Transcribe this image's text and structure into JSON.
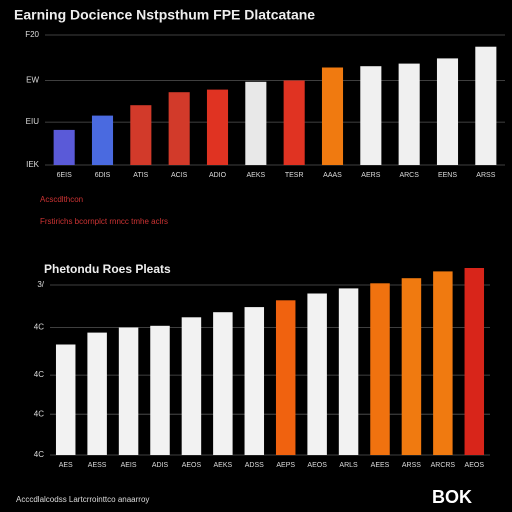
{
  "chart_data": [
    {
      "type": "bar",
      "title": "Earning Docience Nstpsthum FPE Dlatcatane",
      "categories": [
        "6EIS",
        "6DIS",
        "ATIS",
        "ACIS",
        "ADIO",
        "AEKS",
        "TESR",
        "AAAS",
        "AERS",
        "ARCS",
        "EENS",
        "ARSS"
      ],
      "values": [
        27,
        38,
        46,
        56,
        58,
        64,
        65,
        75,
        76,
        78,
        82,
        91
      ],
      "colors": [
        "#5a5ad8",
        "#4a6ae0",
        "#d23a2a",
        "#d23a2a",
        "#e03322",
        "#e8e8e8",
        "#e03322",
        "#f07a10",
        "#f0f0f0",
        "#f0f0f0",
        "#f0f0f0",
        "#f0f0f0"
      ],
      "ylim": [
        0,
        100
      ],
      "yticks": [
        {
          "value": 0,
          "label": "IEK"
        },
        {
          "value": 33,
          "label": "EIU"
        },
        {
          "value": 65,
          "label": "EW"
        },
        {
          "value": 100,
          "label": "F20"
        }
      ],
      "grid": true,
      "annotations": [
        "Acscdlthcon",
        "Frstirichs bcornplct rnncc tmhe aclrs"
      ]
    },
    {
      "type": "bar",
      "title": "Phetondu Roes Pleats",
      "categories": [
        "AES",
        "AESS",
        "AEIS",
        "ADIS",
        "AEOS",
        "AEKS",
        "ADSS",
        "AEPS",
        "AEOS",
        "ARLS",
        "AEES",
        "ARSS",
        "ARCRS",
        "AEOS"
      ],
      "values": [
        65,
        72,
        75,
        76,
        81,
        84,
        87,
        91,
        95,
        98,
        101,
        104,
        108,
        110
      ],
      "colors": [
        "#f2f2f2",
        "#f2f2f2",
        "#f2f2f2",
        "#f2f2f2",
        "#f2f2f2",
        "#f2f2f2",
        "#f2f2f2",
        "#f0620f",
        "#f2f2f2",
        "#f2f2f2",
        "#f0720f",
        "#f07a10",
        "#f07a10",
        "#d8251a"
      ],
      "ylim": [
        0,
        110
      ],
      "yticks": [
        {
          "value": 0,
          "label": "4C"
        },
        {
          "value": 24,
          "label": "4C"
        },
        {
          "value": 47,
          "label": "4C"
        },
        {
          "value": 75,
          "label": "4C"
        },
        {
          "value": 100,
          "label": "3/"
        }
      ],
      "grid": true,
      "annotations": [
        "Acccdlalcodss Lartcrrointtco anaarroy"
      ]
    }
  ],
  "footer": "BOK"
}
